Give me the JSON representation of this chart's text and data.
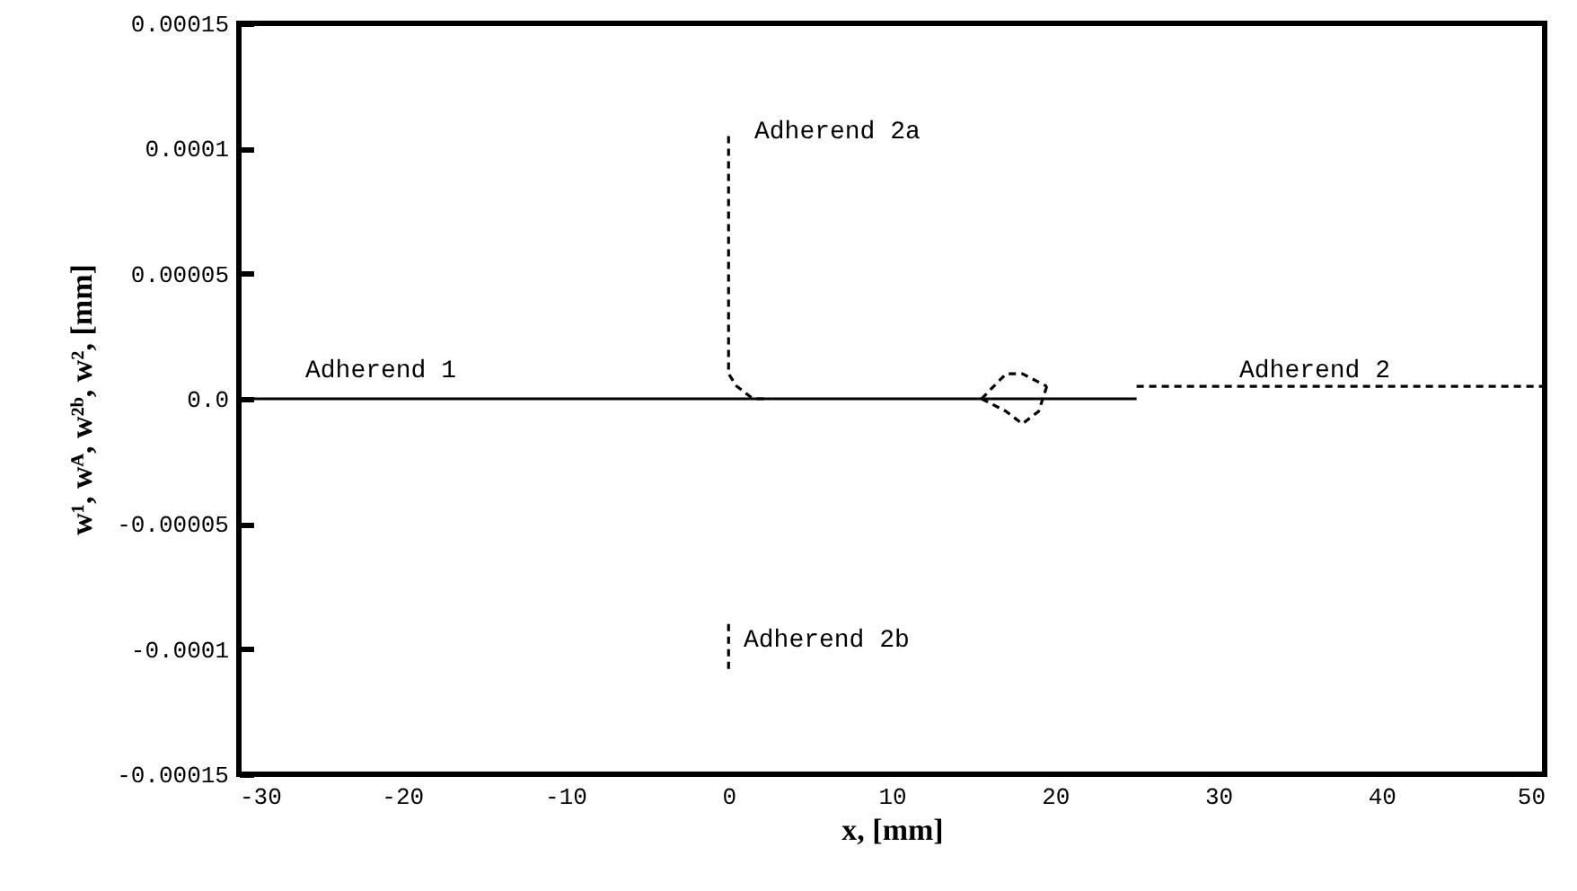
{
  "chart_data": {
    "type": "line",
    "xlabel": "x, [mm]",
    "ylabel": "w¹, wᴬ, w²ᵇ, w², [mm]",
    "xlim": [
      -30,
      50
    ],
    "xticks": [
      -30,
      -20,
      -10,
      0,
      10,
      20,
      30,
      40,
      50
    ],
    "ylim": [
      -0.00015,
      0.00015
    ],
    "yticks": [
      -0.00015,
      -0.0001,
      {
        "value": -5e-05,
        "label": "-0.00005"
      },
      {
        "value": 0,
        "label": "0.0"
      },
      {
        "value": 5e-05,
        "label": "0.00005"
      },
      0.0001,
      0.00015
    ],
    "series": [
      {
        "color": "#000000",
        "line_style": "solid",
        "x": [
          -30,
          25
        ],
        "values": [
          0,
          0
        ]
      },
      {
        "color": "#000000",
        "line_style": "dashed",
        "x": [
          25,
          50
        ],
        "values": [
          5e-06,
          5e-06
        ]
      },
      {
        "color": "#000000",
        "line_style": "dashed",
        "x": [
          0,
          0,
          0.5,
          1.5,
          2.5
        ],
        "values": [
          0.000105,
          1e-05,
          5e-06,
          0,
          0
        ]
      },
      {
        "color": "#000000",
        "line_style": "dashed",
        "x": [
          0,
          0
        ],
        "values": [
          -9e-05,
          -0.00011
        ]
      },
      {
        "color": "#000000",
        "line_style": "dashed",
        "x": [
          15.5,
          17,
          18,
          19.5
        ],
        "values": [
          0,
          1e-05,
          1e-05,
          5e-06
        ]
      },
      {
        "color": "#000000",
        "line_style": "dashed",
        "x": [
          15.5,
          17,
          18,
          19,
          19.5
        ],
        "values": [
          0,
          -5e-06,
          -1e-05,
          -5e-06,
          5e-06
        ]
      }
    ],
    "annotations": [
      "Adherend 1",
      "Adherend 2a",
      "Adherend 2",
      "Adherend 2b"
    ]
  }
}
